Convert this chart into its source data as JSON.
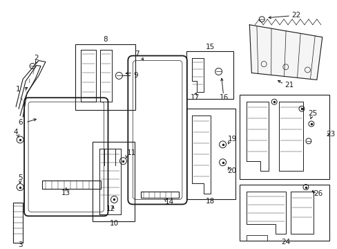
{
  "bg_color": "#ffffff",
  "line_color": "#1a1a1a",
  "fig_width": 4.89,
  "fig_height": 3.6,
  "dpi": 100,
  "parts": {
    "label_fontsize": 7.5,
    "arrow_lw": 0.7,
    "part_lw": 0.8
  }
}
